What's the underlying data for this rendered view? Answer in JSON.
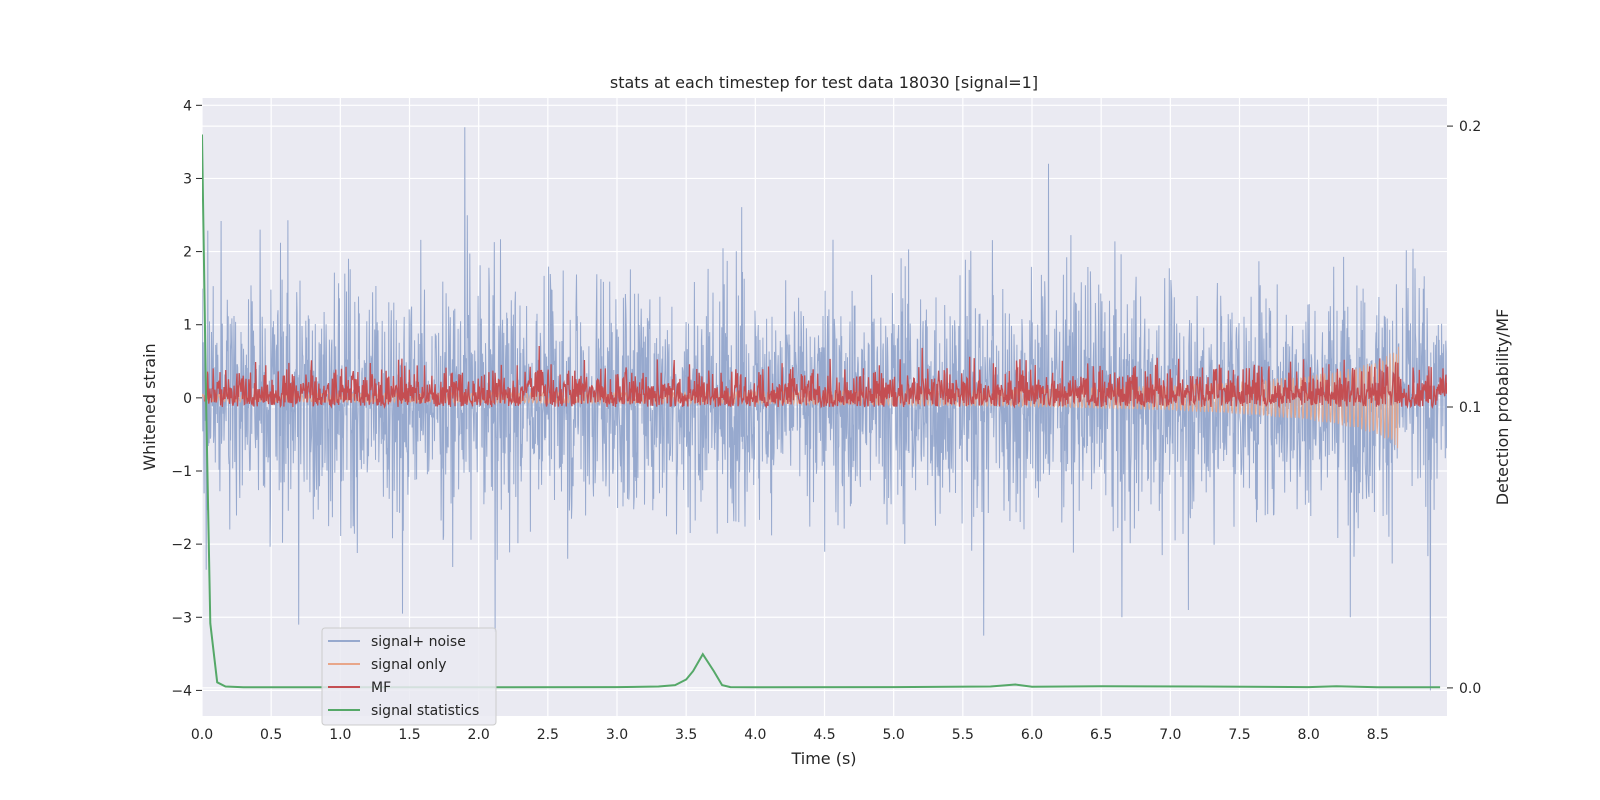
{
  "chart_data": {
    "type": "line",
    "title": "stats at each timestep for test data 18030 [signal=1]",
    "xlabel": "Time (s)",
    "ylabel": "Whitened strain",
    "y2label": "Detection probability/MF",
    "xlim": [
      0.0,
      9.0
    ],
    "ylim": [
      -4.35,
      4.1
    ],
    "y2lim": [
      -0.01,
      0.21
    ],
    "x_ticks": [
      "0.0",
      "0.5",
      "1.0",
      "1.5",
      "2.0",
      "2.5",
      "3.0",
      "3.5",
      "4.0",
      "4.5",
      "5.0",
      "5.5",
      "6.0",
      "6.5",
      "7.0",
      "7.5",
      "8.0",
      "8.5"
    ],
    "y_ticks": [
      "4",
      "3",
      "2",
      "1",
      "0",
      "−1",
      "−2",
      "−3",
      "−4"
    ],
    "y2_ticks": [
      "0.2",
      "0.1",
      "0.0"
    ],
    "grid": true,
    "legend_position": "lower-left",
    "colors": {
      "noise": "#97a9ce",
      "signal_only": "#e8a68a",
      "mf": "#c44e52",
      "stats": "#55a868",
      "background": "#eaeaf2",
      "grid": "#ffffff"
    },
    "series": [
      {
        "name": "signal+ noise",
        "description": "noisy whitened strain, roughly within ±2.5, extremes 3.7 at t≈1.9 and −4.0 at t≈8.88",
        "peaks": [
          [
            0.02,
            1.2
          ],
          [
            0.03,
            -2.35
          ],
          [
            0.42,
            2.3
          ],
          [
            0.7,
            -3.1
          ],
          [
            1.9,
            3.7
          ],
          [
            2.12,
            -3.2
          ],
          [
            1.45,
            -2.95
          ],
          [
            5.65,
            -3.25
          ],
          [
            6.12,
            3.2
          ],
          [
            6.65,
            -3.0
          ],
          [
            8.88,
            -4.0
          ],
          [
            8.3,
            -3.0
          ]
        ]
      },
      {
        "name": "signal only",
        "description": "chirp signal growing toward merger near t≈8.65",
        "envelope": [
          [
            0.0,
            0.05
          ],
          [
            4.0,
            0.08
          ],
          [
            6.0,
            0.12
          ],
          [
            7.0,
            0.17
          ],
          [
            7.5,
            0.22
          ],
          [
            8.0,
            0.3
          ],
          [
            8.3,
            0.4
          ],
          [
            8.5,
            0.5
          ],
          [
            8.6,
            0.62
          ],
          [
            8.65,
            0.7
          ],
          [
            8.66,
            0.05
          ]
        ]
      },
      {
        "name": "MF",
        "description": "matched filter output on right axis, ~0.1 to 0.12 with spikes",
        "base": 0.1,
        "amplitude": 0.012
      },
      {
        "name": "signal statistics",
        "x": [
          0.0,
          0.03,
          0.06,
          0.11,
          0.17,
          0.3,
          1.0,
          2.0,
          3.0,
          3.3,
          3.42,
          3.5,
          3.55,
          3.62,
          3.7,
          3.76,
          3.82,
          4.0,
          5.0,
          5.7,
          5.88,
          6.0,
          6.5,
          7.2,
          8.0,
          8.2,
          8.5,
          8.95
        ],
        "y2": [
          0.197,
          0.1,
          0.023,
          0.002,
          0.0005,
          0.0002,
          0.0002,
          0.0002,
          0.0003,
          0.0005,
          0.001,
          0.003,
          0.006,
          0.012,
          0.006,
          0.001,
          0.0003,
          0.0002,
          0.0003,
          0.0005,
          0.0012,
          0.0004,
          0.0006,
          0.0005,
          0.0003,
          0.0006,
          0.0002,
          0.0002
        ]
      }
    ]
  }
}
